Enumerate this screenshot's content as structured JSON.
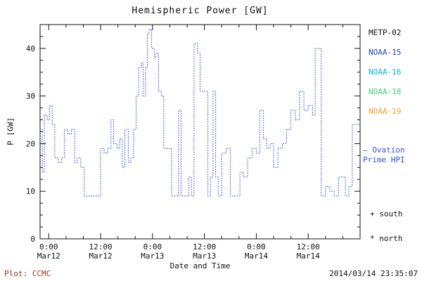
{
  "title": "Hemispheric Power [GW]",
  "footer": {
    "left": "Plot: CCMC",
    "left_color": "#a03322",
    "right": "2014/03/14 23:35:07"
  },
  "chart_data": {
    "type": "line",
    "line_style": "dotted",
    "step": true,
    "title": "Hemispheric Power [GW]",
    "xlabel": "Date and Time",
    "ylabel": "P [GW]",
    "xlim_hours": [
      -2,
      72
    ],
    "ylim": [
      0,
      45
    ],
    "y_ticks": [
      0,
      10,
      20,
      30,
      40
    ],
    "x_ticks": [
      {
        "time": "0:00",
        "date": "Mar12",
        "hour": 0
      },
      {
        "time": "12:00",
        "date": "Mar12",
        "hour": 12
      },
      {
        "time": "0:00",
        "date": "Mar13",
        "hour": 24
      },
      {
        "time": "12:00",
        "date": "Mar13",
        "hour": 36
      },
      {
        "time": "0:00",
        "date": "Mar14",
        "hour": 48
      },
      {
        "time": "12:00",
        "date": "Mar14",
        "hour": 60
      }
    ],
    "legend": [
      {
        "label": "METP-02",
        "color": "#111111"
      },
      {
        "label": "NOAA-15",
        "color": "#2244cc"
      },
      {
        "label": "NOAA-16",
        "color": "#00b8d4"
      },
      {
        "label": "NOAA-18",
        "color": "#44cc77"
      },
      {
        "label": "NOAA-19",
        "color": "#ff9922"
      }
    ],
    "ovation_label": {
      "line1": "— Ovation",
      "line2": "Prime HPI",
      "color": "#3355cc"
    },
    "marker_legend": {
      "south": "+ south",
      "north": "* north"
    },
    "series": [
      {
        "name": "Ovation Prime HPI",
        "color": "#3355cc",
        "points": [
          [
            -2.0,
            23
          ],
          [
            -1.5,
            14
          ],
          [
            -1.0,
            26
          ],
          [
            -0.4,
            25
          ],
          [
            0.2,
            28
          ],
          [
            0.8,
            24
          ],
          [
            1.4,
            17
          ],
          [
            2.2,
            16
          ],
          [
            3.0,
            17
          ],
          [
            3.6,
            23
          ],
          [
            4.4,
            22
          ],
          [
            5.2,
            23
          ],
          [
            6.0,
            16
          ],
          [
            6.6,
            17
          ],
          [
            7.4,
            15
          ],
          [
            8.2,
            9
          ],
          [
            11.6,
            9
          ],
          [
            12.0,
            19
          ],
          [
            12.8,
            18
          ],
          [
            13.6,
            19
          ],
          [
            14.4,
            25
          ],
          [
            15.0,
            20
          ],
          [
            15.8,
            19
          ],
          [
            16.4,
            21
          ],
          [
            17.0,
            15
          ],
          [
            17.6,
            23
          ],
          [
            18.4,
            16
          ],
          [
            19.0,
            17
          ],
          [
            19.6,
            23
          ],
          [
            20.2,
            30
          ],
          [
            20.8,
            36
          ],
          [
            21.4,
            37
          ],
          [
            21.8,
            30
          ],
          [
            22.4,
            36
          ],
          [
            22.8,
            43
          ],
          [
            23.2,
            44
          ],
          [
            23.8,
            40
          ],
          [
            24.4,
            38
          ],
          [
            24.8,
            39
          ],
          [
            25.4,
            31
          ],
          [
            26.0,
            30
          ],
          [
            26.6,
            19
          ],
          [
            27.8,
            19
          ],
          [
            28.4,
            9
          ],
          [
            29.6,
            9
          ],
          [
            30.0,
            27
          ],
          [
            30.6,
            9
          ],
          [
            31.8,
            9
          ],
          [
            32.4,
            13
          ],
          [
            33.0,
            9
          ],
          [
            33.6,
            41
          ],
          [
            34.4,
            39
          ],
          [
            35.0,
            31
          ],
          [
            36.2,
            31
          ],
          [
            36.8,
            9
          ],
          [
            37.4,
            13
          ],
          [
            38.0,
            31
          ],
          [
            38.6,
            13
          ],
          [
            39.2,
            9
          ],
          [
            40.0,
            18
          ],
          [
            41.0,
            19
          ],
          [
            42.0,
            9
          ],
          [
            43.6,
            9
          ],
          [
            44.2,
            14
          ],
          [
            45.0,
            13
          ],
          [
            46.0,
            17
          ],
          [
            47.0,
            19
          ],
          [
            48.0,
            18
          ],
          [
            48.8,
            27
          ],
          [
            49.6,
            21
          ],
          [
            50.4,
            19
          ],
          [
            51.2,
            20
          ],
          [
            52.0,
            15
          ],
          [
            53.0,
            19
          ],
          [
            54.0,
            20
          ],
          [
            55.0,
            23
          ],
          [
            56.0,
            27
          ],
          [
            57.0,
            25
          ],
          [
            58.0,
            31
          ],
          [
            59.0,
            27
          ],
          [
            60.0,
            28
          ],
          [
            61.0,
            26
          ],
          [
            61.6,
            40
          ],
          [
            62.6,
            40
          ],
          [
            63.0,
            9
          ],
          [
            64.0,
            11
          ],
          [
            65.0,
            10
          ],
          [
            66.0,
            9
          ],
          [
            67.0,
            13
          ],
          [
            68.0,
            13
          ],
          [
            68.6,
            9
          ],
          [
            69.4,
            11
          ],
          [
            70.2,
            24
          ]
        ]
      }
    ]
  }
}
